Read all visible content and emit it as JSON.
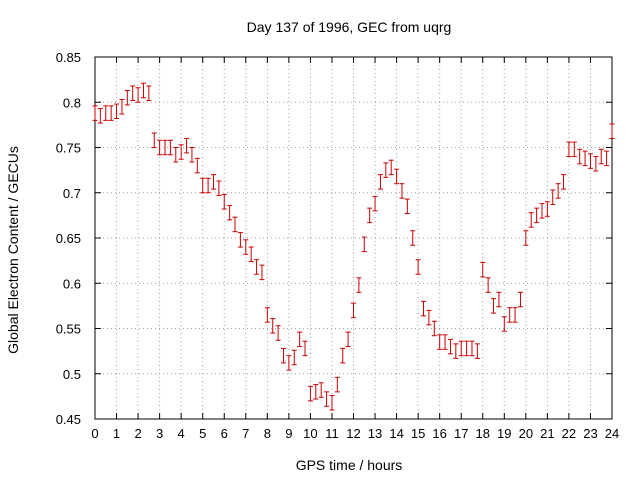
{
  "chart_data": {
    "type": "scatter",
    "title": "Day 137 of 1996, GEC from uqrg",
    "xlabel": "GPS time / hours",
    "ylabel": "Global Electron Content / GECUs",
    "xlim": [
      0,
      24
    ],
    "ylim": [
      0.45,
      0.85
    ],
    "xticks": [
      0,
      1,
      2,
      3,
      4,
      5,
      6,
      7,
      8,
      9,
      10,
      11,
      12,
      13,
      14,
      15,
      16,
      17,
      18,
      19,
      20,
      21,
      22,
      23,
      24
    ],
    "yticks": [
      0.45,
      0.5,
      0.55,
      0.6,
      0.65,
      0.7,
      0.75,
      0.8,
      0.85
    ],
    "ytick_labels": [
      "0.45",
      "0.5",
      "0.55",
      "0.6",
      "0.65",
      "0.7",
      "0.75",
      "0.8",
      "0.85"
    ],
    "grid": true,
    "color": "#cc0000",
    "error_bar": 0.008,
    "series": [
      {
        "x": [
          0,
          0.25,
          0.5,
          0.75,
          1,
          1.25,
          1.5,
          1.75,
          2,
          2.25,
          2.5,
          2.75,
          3,
          3.25,
          3.5,
          3.75,
          4,
          4.25,
          4.5,
          4.75,
          5,
          5.25,
          5.5,
          5.75,
          6,
          6.25,
          6.5,
          6.75,
          7,
          7.25,
          7.5,
          7.75,
          8,
          8.25,
          8.5,
          8.75,
          9,
          9.25,
          9.5,
          9.75,
          10,
          10.25,
          10.5,
          10.75,
          11,
          11.25,
          11.5,
          11.75,
          12,
          12.25,
          12.5,
          12.75,
          13,
          13.25,
          13.5,
          13.75,
          14,
          14.25,
          14.5,
          14.75,
          15,
          15.25,
          15.5,
          15.75,
          16,
          16.25,
          16.5,
          16.75,
          17,
          17.25,
          17.5,
          17.75,
          18,
          18.25,
          18.5,
          18.75,
          19,
          19.25,
          19.5,
          19.75,
          20,
          20.25,
          20.5,
          20.75,
          21,
          21.25,
          21.5,
          21.75,
          22,
          22.25,
          22.5,
          22.75,
          23,
          23.25,
          23.5,
          23.75,
          24
        ],
        "y": [
          0.788,
          0.785,
          0.788,
          0.788,
          0.79,
          0.795,
          0.805,
          0.81,
          0.808,
          0.813,
          0.81,
          0.758,
          0.75,
          0.75,
          0.75,
          0.742,
          0.745,
          0.752,
          0.742,
          0.73,
          0.708,
          0.708,
          0.712,
          0.705,
          0.69,
          0.678,
          0.665,
          0.648,
          0.64,
          0.632,
          0.618,
          0.612,
          0.565,
          0.553,
          0.545,
          0.52,
          0.512,
          0.518,
          0.538,
          0.528,
          0.478,
          0.48,
          0.482,
          0.472,
          0.468,
          0.488,
          0.52,
          0.538,
          0.57,
          0.598,
          0.643,
          0.675,
          0.688,
          0.712,
          0.725,
          0.728,
          0.718,
          0.702,
          0.685,
          0.65,
          0.618,
          0.572,
          0.562,
          0.55,
          0.535,
          0.535,
          0.53,
          0.525,
          0.528,
          0.528,
          0.528,
          0.525,
          0.615,
          0.598,
          0.575,
          0.582,
          0.555,
          0.565,
          0.565,
          0.582,
          0.65,
          0.67,
          0.675,
          0.68,
          0.682,
          0.695,
          0.702,
          0.712,
          0.748,
          0.748,
          0.74,
          0.738,
          0.735,
          0.732,
          0.74,
          0.738,
          0.768
        ]
      }
    ]
  }
}
